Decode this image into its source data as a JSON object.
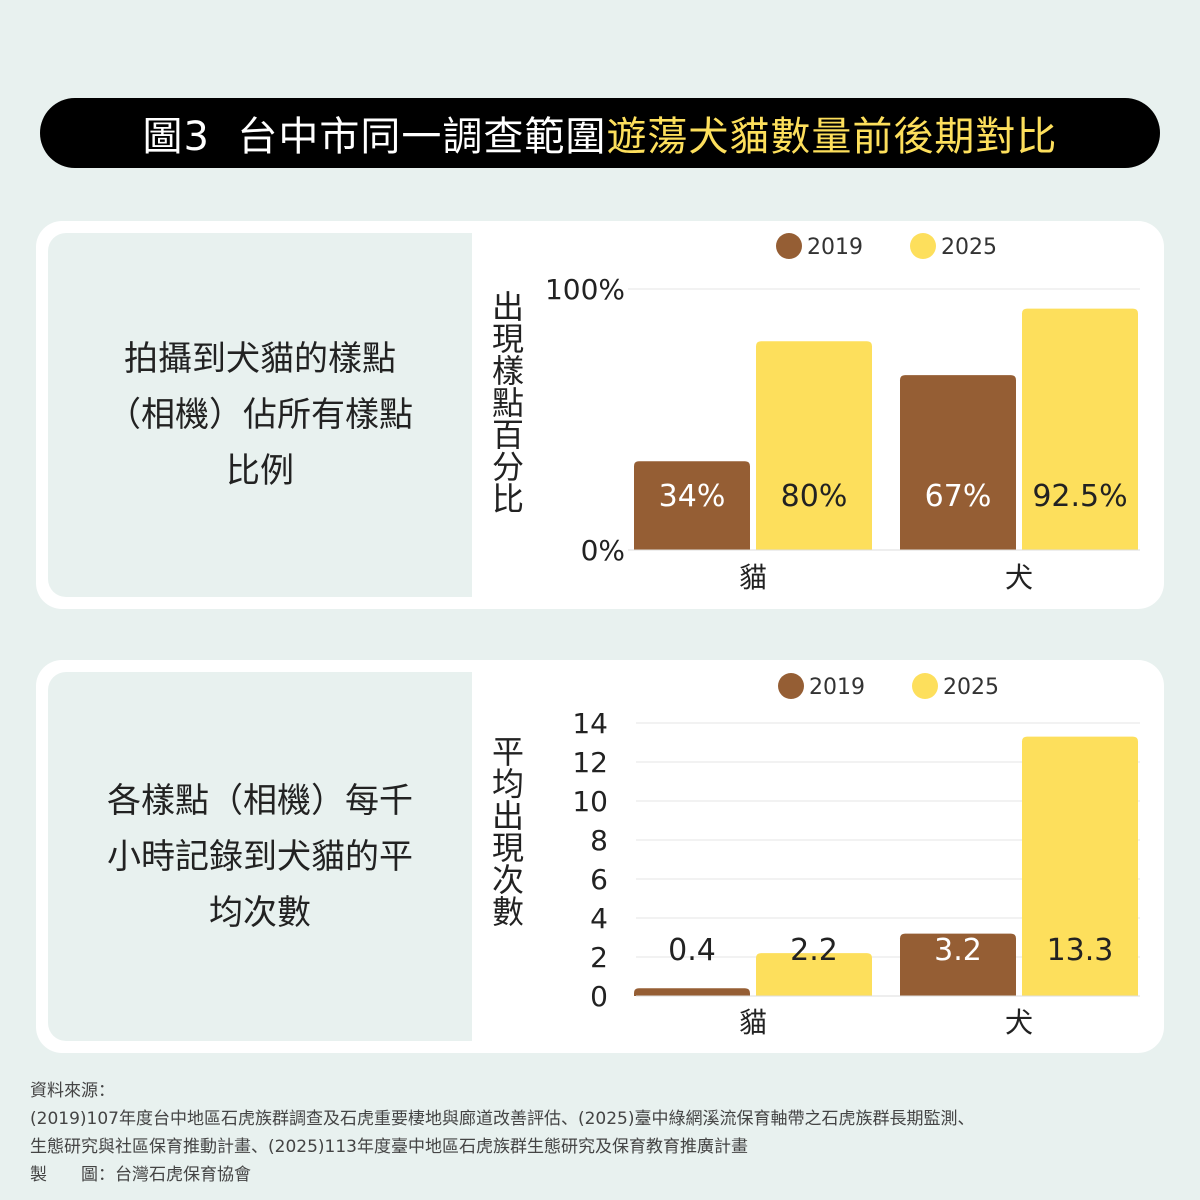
{
  "title": {
    "prefix": "圖3  台中市同一調查範圍",
    "highlight": "遊蕩犬貓數量前後期對比"
  },
  "colors": {
    "c2019": "#955e34",
    "c2025": "#fddf5c",
    "background": "#e8f1ef"
  },
  "panel1": {
    "description": "拍攝到犬貓的樣點（相機）佔所有樣點比例"
  },
  "panel2": {
    "description": "各樣點（相機）每千小時記錄到犬貓的平均次數"
  },
  "chart_data": [
    {
      "type": "bar",
      "title": "",
      "ylabel": "出現樣點百分比",
      "categories": [
        "貓",
        "犬"
      ],
      "series": [
        {
          "name": "2019",
          "values": [
            34,
            67
          ],
          "labels": [
            "34%",
            "67%"
          ]
        },
        {
          "name": "2025",
          "values": [
            80,
            92.5
          ],
          "labels": [
            "80%",
            "92.5%"
          ]
        }
      ],
      "ylim": [
        0,
        100
      ],
      "yticks": [
        0,
        100
      ],
      "ytick_labels": [
        "0%",
        "100%"
      ],
      "legend": "top",
      "grid": true
    },
    {
      "type": "bar",
      "title": "",
      "ylabel": "平均出現次數",
      "categories": [
        "貓",
        "犬"
      ],
      "series": [
        {
          "name": "2019",
          "values": [
            0.4,
            3.2
          ],
          "labels": [
            "0.4",
            "3.2"
          ]
        },
        {
          "name": "2025",
          "values": [
            2.2,
            13.3
          ],
          "labels": [
            "2.2",
            "13.3"
          ]
        }
      ],
      "ylim": [
        0,
        14
      ],
      "yticks": [
        0,
        2,
        4,
        6,
        8,
        10,
        12,
        14
      ],
      "ytick_labels": [
        "0",
        "2",
        "4",
        "6",
        "8",
        "10",
        "12",
        "14"
      ],
      "legend": "top",
      "grid": true
    }
  ],
  "footer": {
    "heading": "資料來源：",
    "line1": "(2019)107年度台中地區石虎族群調查及石虎重要棲地與廊道改善評估、(2025)臺中綠網溪流保育軸帶之石虎族群長期監測、",
    "line2": "生態研究與社區保育推動計畫、(2025)113年度臺中地區石虎族群生態研究及保育教育推廣計畫",
    "credit": "製　　圖：台灣石虎保育協會"
  }
}
